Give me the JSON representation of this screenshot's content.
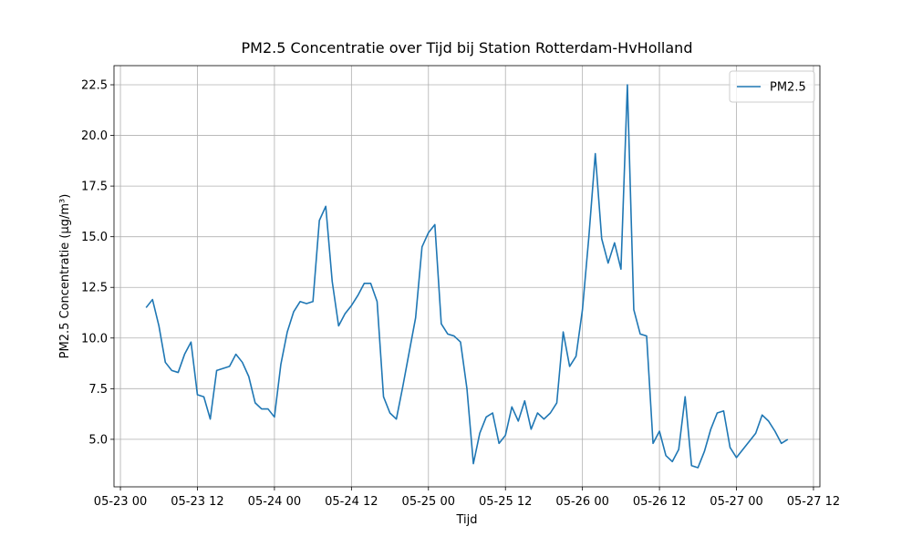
{
  "chart_data": {
    "type": "line",
    "title": "PM2.5 Concentratie over Tijd bij Station Rotterdam-HvHolland",
    "x_label": "Tijd",
    "y_label": "PM2.5 Concentratie (µg/m³)",
    "x": [
      "05-23 04",
      "05-23 05",
      "05-23 06",
      "05-23 07",
      "05-23 08",
      "05-23 09",
      "05-23 10",
      "05-23 11",
      "05-23 12",
      "05-23 13",
      "05-23 14",
      "05-23 15",
      "05-23 16",
      "05-23 17",
      "05-23 18",
      "05-23 19",
      "05-23 20",
      "05-23 21",
      "05-23 22",
      "05-23 23",
      "05-24 00",
      "05-24 01",
      "05-24 02",
      "05-24 03",
      "05-24 04",
      "05-24 05",
      "05-24 06",
      "05-24 07",
      "05-24 08",
      "05-24 09",
      "05-24 10",
      "05-24 11",
      "05-24 12",
      "05-24 13",
      "05-24 14",
      "05-24 15",
      "05-24 16",
      "05-24 17",
      "05-24 18",
      "05-24 19",
      "05-24 20",
      "05-24 21",
      "05-24 22",
      "05-24 23",
      "05-25 00",
      "05-25 01",
      "05-25 02",
      "05-25 03",
      "05-25 04",
      "05-25 05",
      "05-25 06",
      "05-25 07",
      "05-25 08",
      "05-25 09",
      "05-25 10",
      "05-25 11",
      "05-25 12",
      "05-25 13",
      "05-25 14",
      "05-25 15",
      "05-25 16",
      "05-25 17",
      "05-25 18",
      "05-25 19",
      "05-25 20",
      "05-25 21",
      "05-25 22",
      "05-25 23",
      "05-26 00",
      "05-26 01",
      "05-26 02",
      "05-26 03",
      "05-26 04",
      "05-26 05",
      "05-26 06",
      "05-26 07",
      "05-26 08",
      "05-26 09",
      "05-26 10",
      "05-26 11",
      "05-26 12",
      "05-26 13",
      "05-26 14",
      "05-26 15",
      "05-26 16",
      "05-26 17",
      "05-26 18",
      "05-26 19",
      "05-26 20",
      "05-26 21",
      "05-26 22",
      "05-26 23",
      "05-27 00",
      "05-27 01",
      "05-27 02",
      "05-27 03",
      "05-27 04",
      "05-27 05",
      "05-27 06",
      "05-27 07",
      "05-27 08"
    ],
    "series": [
      {
        "name": "PM2.5",
        "color": "#1f77b4",
        "values": [
          11.5,
          11.9,
          10.6,
          8.8,
          8.4,
          8.3,
          9.2,
          9.8,
          7.2,
          7.1,
          6.0,
          8.4,
          8.5,
          8.6,
          9.2,
          8.8,
          8.1,
          6.8,
          6.5,
          6.5,
          6.1,
          8.7,
          10.3,
          11.3,
          11.8,
          11.7,
          11.8,
          15.8,
          16.5,
          12.8,
          10.6,
          11.2,
          11.6,
          12.1,
          12.7,
          12.7,
          11.8,
          7.1,
          6.3,
          6.0,
          7.6,
          9.3,
          11.0,
          14.5,
          15.2,
          15.6,
          10.7,
          10.2,
          10.1,
          9.8,
          7.5,
          3.8,
          5.3,
          6.1,
          6.3,
          4.8,
          5.2,
          6.6,
          5.9,
          6.9,
          5.5,
          6.3,
          6.0,
          6.3,
          6.8,
          10.3,
          8.6,
          9.1,
          11.4,
          15.0,
          19.1,
          14.9,
          13.7,
          14.7,
          13.4,
          22.5,
          11.4,
          10.2,
          10.1,
          4.8,
          5.4,
          4.2,
          3.9,
          4.5,
          7.1,
          3.7,
          3.6,
          4.4,
          5.5,
          6.3,
          6.4,
          4.6,
          4.1,
          4.5,
          4.9,
          5.3,
          6.2,
          5.9,
          5.4,
          4.8,
          5.0
        ]
      }
    ],
    "xlim": [
      "05-22 23",
      "05-27 13"
    ],
    "xticks": [
      "05-23 00",
      "05-23 12",
      "05-24 00",
      "05-24 12",
      "05-25 00",
      "05-25 12",
      "05-26 00",
      "05-26 12",
      "05-27 00",
      "05-27 12"
    ],
    "ylim": [
      2.655,
      23.445
    ],
    "yticks": [
      {
        "value": 5,
        "label": "5.0"
      },
      7.5,
      {
        "value": 10,
        "label": "10.0"
      },
      12.5,
      {
        "value": 15,
        "label": "15.0"
      },
      17.5,
      {
        "value": 20,
        "label": "20.0"
      },
      22.5
    ],
    "grid": true,
    "legend": "upper right"
  }
}
